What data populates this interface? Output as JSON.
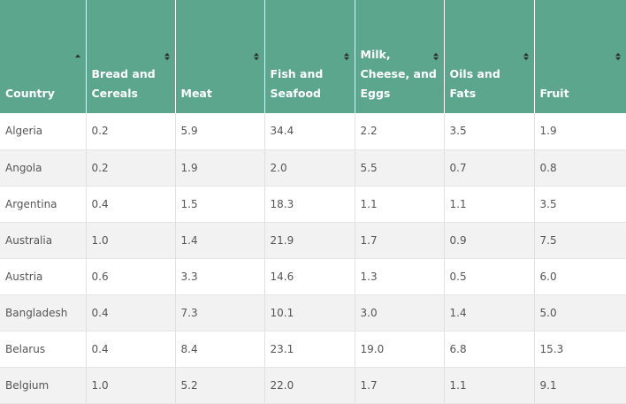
{
  "table": {
    "headers": [
      {
        "label": "Country",
        "sort": "asc"
      },
      {
        "label": "Bread and Cereals",
        "sort": "both"
      },
      {
        "label": "Meat",
        "sort": "both"
      },
      {
        "label": "Fish and Seafood",
        "sort": "both"
      },
      {
        "label": "Milk, Cheese, and Eggs",
        "sort": "both"
      },
      {
        "label": "Oils and Fats",
        "sort": "both"
      },
      {
        "label": "Fruit",
        "sort": "both"
      }
    ],
    "rows": [
      [
        "Algeria",
        "0.2",
        "5.9",
        "34.4",
        "2.2",
        "3.5",
        "1.9"
      ],
      [
        "Angola",
        "0.2",
        "1.9",
        "2.0",
        "5.5",
        "0.7",
        "0.8"
      ],
      [
        "Argentina",
        "0.4",
        "1.5",
        "18.3",
        "1.1",
        "1.1",
        "3.5"
      ],
      [
        "Australia",
        "1.0",
        "1.4",
        "21.9",
        "1.7",
        "0.9",
        "7.5"
      ],
      [
        "Austria",
        "0.6",
        "3.3",
        "14.6",
        "1.3",
        "0.5",
        "6.0"
      ],
      [
        "Bangladesh",
        "0.4",
        "7.3",
        "10.1",
        "3.0",
        "1.4",
        "5.0"
      ],
      [
        "Belarus",
        "0.4",
        "8.4",
        "23.1",
        "19.0",
        "6.8",
        "15.3"
      ],
      [
        "Belgium",
        "1.0",
        "5.2",
        "22.0",
        "1.7",
        "1.1",
        "9.1"
      ]
    ]
  },
  "colors": {
    "header_bg": "#5ba68d",
    "header_text": "#ffffff",
    "row_alt_bg": "#f2f2f2",
    "cell_text": "#555555"
  },
  "icons": {
    "asc": "sort-ascending-icon",
    "both": "sort-icon"
  }
}
